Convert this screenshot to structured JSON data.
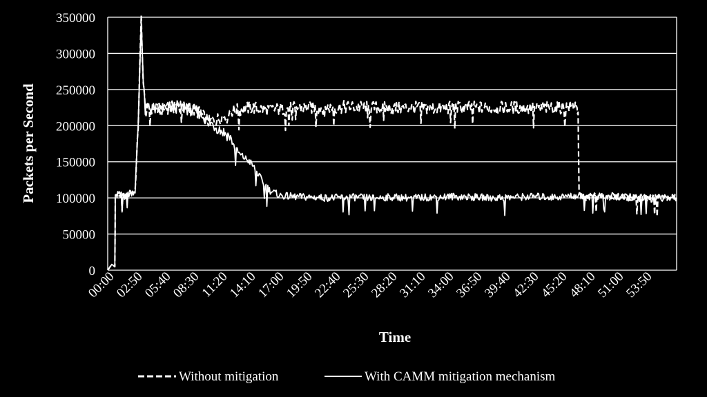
{
  "chart_data": {
    "type": "line",
    "title": "",
    "xlabel": "Time",
    "ylabel": "Packets per Second",
    "ylim": [
      0,
      350000
    ],
    "y_ticks": [
      0,
      50000,
      100000,
      150000,
      200000,
      250000,
      300000,
      350000
    ],
    "y_tick_labels": [
      "0",
      "50000",
      "100000",
      "150000",
      "200000",
      "250000",
      "300000",
      "350000"
    ],
    "x_range_minutes": [
      0,
      56
    ],
    "x_tick_labels": [
      "00:00",
      "02:50",
      "05:40",
      "08:30",
      "11:20",
      "14:10",
      "17:00",
      "19:50",
      "22:40",
      "25:30",
      "28:20",
      "31:10",
      "34:00",
      "36:50",
      "39:40",
      "42:30",
      "45:20",
      "48:10",
      "51:00",
      "53:50"
    ],
    "grid": "horizontal",
    "legend_position": "bottom",
    "series": [
      {
        "name": "Without mitigation",
        "style": "dashed",
        "color": "#ffffff",
        "x": [
          0,
          0.4,
          0.7,
          0.75,
          1.0,
          1.5,
          2.0,
          2.7,
          3.0,
          3.3,
          3.5,
          3.7,
          4.0,
          5.0,
          6.0,
          7.0,
          8.0,
          9.0,
          10.0,
          11.0,
          12.0,
          13.0,
          14.0,
          16.0,
          18.0,
          20.0,
          22.0,
          24.0,
          26.0,
          28.0,
          30.0,
          32.0,
          34.0,
          36.0,
          38.0,
          40.0,
          42.0,
          44.0,
          45.5,
          46.2,
          46.3,
          46.4,
          47.0,
          48.0,
          50.0,
          52.0,
          54.0,
          56.0
        ],
        "y": [
          0,
          8000,
          5000,
          100000,
          105000,
          102000,
          105000,
          110000,
          200000,
          350000,
          260000,
          220000,
          225000,
          222000,
          225000,
          226000,
          223000,
          218000,
          205000,
          210000,
          220000,
          222000,
          225000,
          222000,
          224000,
          225000,
          225000,
          226000,
          225000,
          224000,
          225000,
          224000,
          225000,
          225000,
          224000,
          225000,
          224000,
          225000,
          226000,
          230000,
          210000,
          105000,
          100000,
          103000,
          102000,
          100000,
          101000,
          100000
        ]
      },
      {
        "name": "With CAMM mitigation mechanism",
        "style": "solid",
        "color": "#ffffff",
        "x": [
          0,
          0.4,
          0.7,
          0.75,
          1.0,
          1.5,
          2.0,
          2.7,
          3.0,
          3.3,
          3.5,
          3.7,
          4.0,
          5.0,
          6.0,
          7.0,
          8.0,
          9.0,
          10.0,
          11.0,
          12.0,
          12.5,
          13.0,
          14.0,
          14.5,
          15.0,
          15.5,
          16.0,
          17.0,
          18.0,
          20.0,
          22.0,
          24.0,
          26.0,
          28.0,
          30.0,
          32.0,
          34.0,
          36.0,
          38.0,
          40.0,
          42.0,
          44.0,
          46.0,
          48.0,
          50.0,
          52.0,
          54.0,
          56.0
        ],
        "y": [
          0,
          8000,
          5000,
          100000,
          105000,
          102000,
          105000,
          110000,
          200000,
          350000,
          260000,
          220000,
          225000,
          222000,
          225000,
          226000,
          223000,
          218000,
          205000,
          195000,
          185000,
          170000,
          160000,
          150000,
          140000,
          128000,
          118000,
          110000,
          103000,
          102000,
          101000,
          100000,
          101000,
          100000,
          101000,
          100000,
          101000,
          102000,
          101000,
          100000,
          101000,
          102000,
          101000,
          103000,
          102000,
          101000,
          100000,
          99000,
          100000
        ]
      }
    ]
  }
}
